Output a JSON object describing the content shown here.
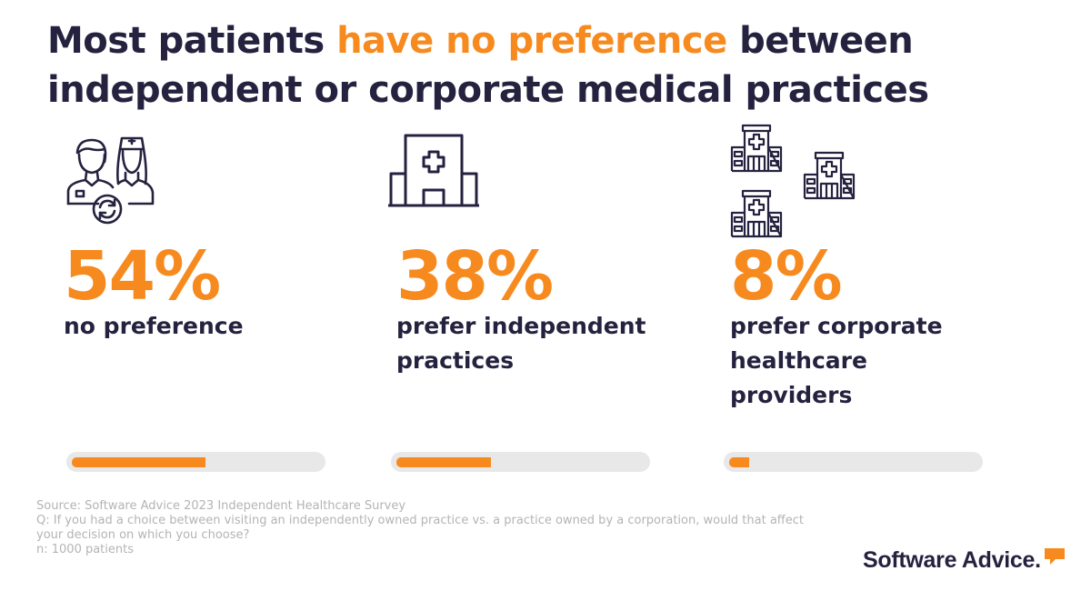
{
  "title": {
    "before": "Most patients ",
    "highlight": "have no preference",
    "after": " between independent or corporate medical practices"
  },
  "chart_data": {
    "type": "bar",
    "categories": [
      "no preference",
      "prefer independent practices",
      "prefer corporate healthcare providers"
    ],
    "values": [
      54,
      38,
      8
    ],
    "value_labels": [
      "54%",
      "38%",
      "8%"
    ],
    "ylim": [
      0,
      100
    ],
    "title": "Most patients have no preference between independent or corporate medical practices"
  },
  "stats": [
    {
      "percent": "54%",
      "label": "no preference",
      "icon": "doctors-exchange-icon"
    },
    {
      "percent": "38%",
      "label": "prefer independent practices",
      "icon": "hospital-icon"
    },
    {
      "percent": "8%",
      "label": "prefer corporate healthcare providers",
      "icon": "hospital-group-icon"
    }
  ],
  "footer": {
    "source": "Source: Software Advice 2023 Independent Healthcare Survey",
    "question": "Q: If you had a choice between visiting an independently owned practice vs. a practice owned by a corporation, would that affect your decision on which you choose?",
    "sample": "n: 1000 patients"
  },
  "brand": {
    "name": "Software Advice."
  },
  "colors": {
    "accent": "#f78a1f",
    "text": "#25223f",
    "track": "#e8e8e8",
    "muted": "#b4b4b4"
  }
}
